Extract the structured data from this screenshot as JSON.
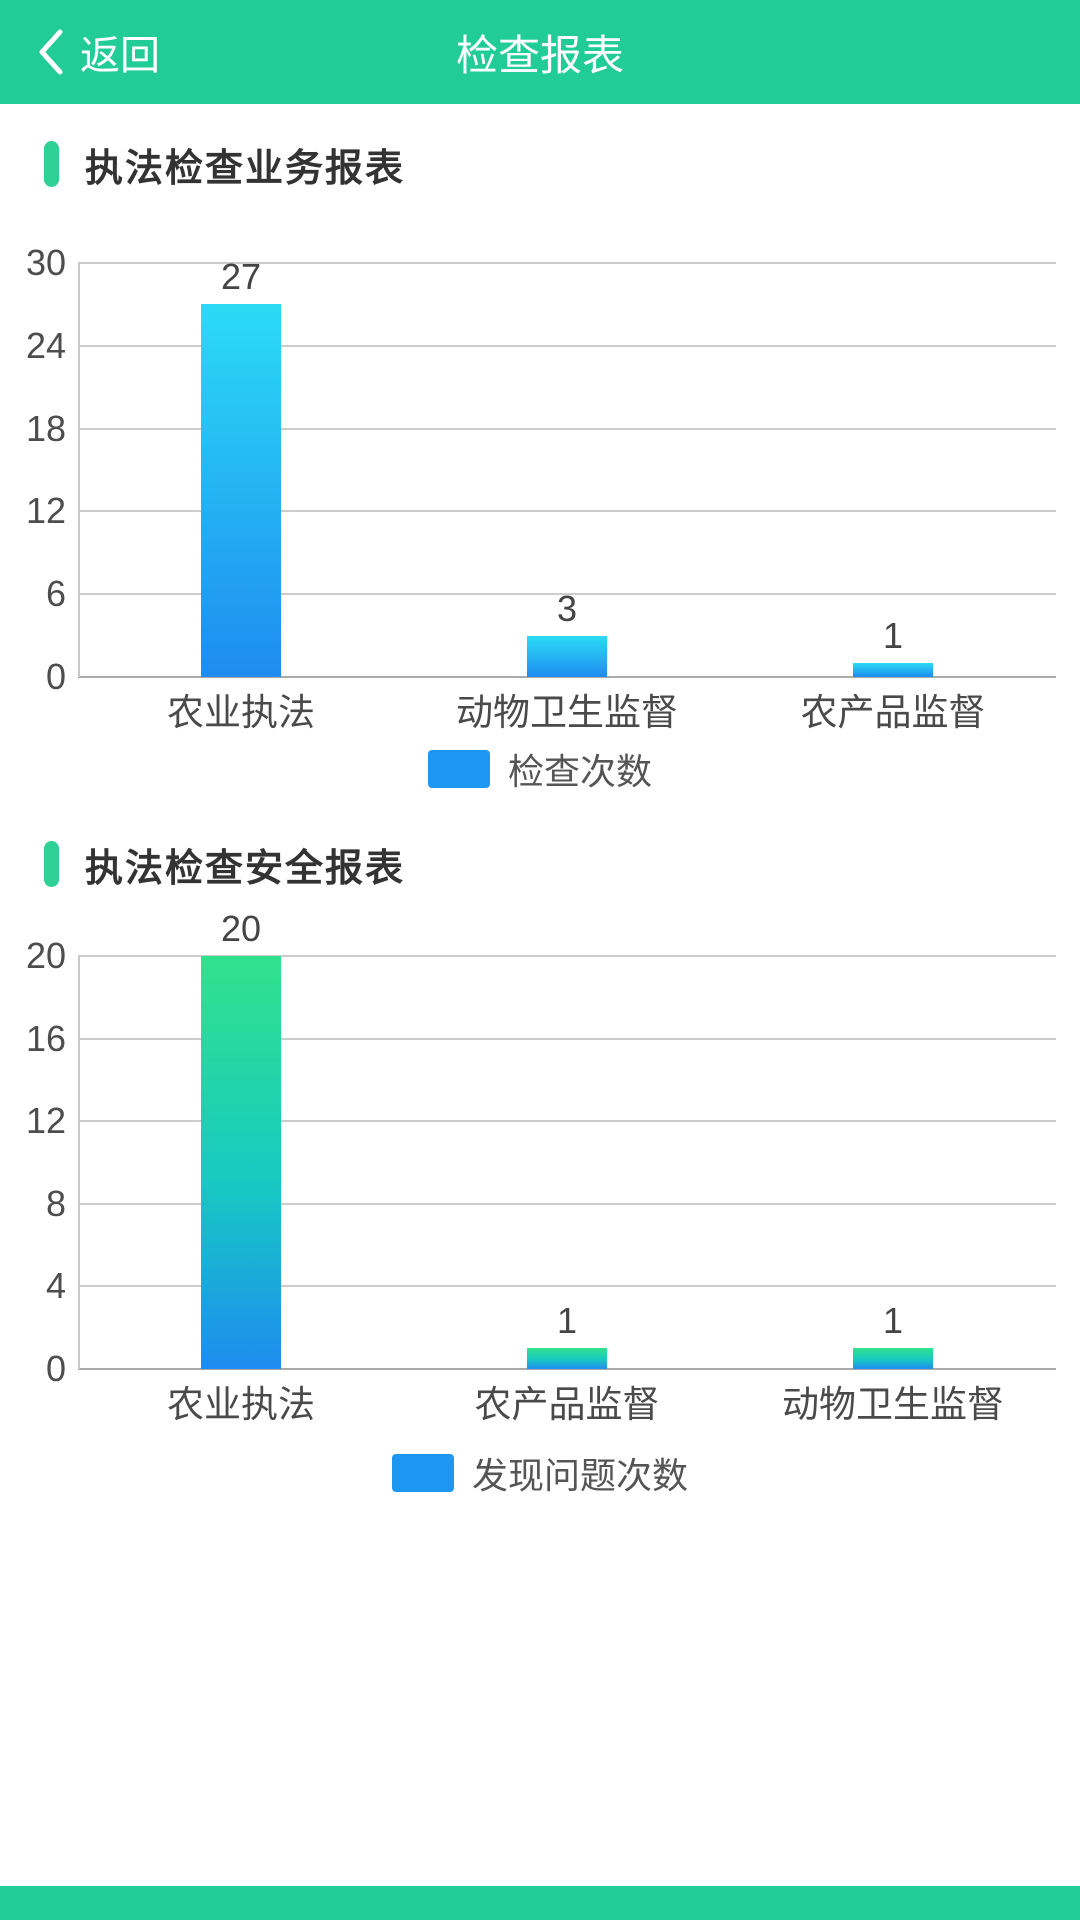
{
  "header": {
    "back_label": "返回",
    "title": "检查报表"
  },
  "colors": {
    "header_teal": "#22cc97",
    "section_marker_green": "#2fd095",
    "legend_swatch_blue": "#1e97f3",
    "bar_gradient_chart1_top": "#2bdbf5",
    "bar_gradient_chart1_bottom": "#1e8cf0",
    "bar_gradient_chart2_top": "#31e28c",
    "bar_gradient_chart2_bottom": "#1e8cf0",
    "gridline_gray": "#cccccc",
    "bottom_bar_teal": "#22cc97"
  },
  "chart_data": [
    {
      "type": "bar",
      "title": "执法检查业务报表",
      "categories": [
        "农业执法",
        "动物卫生监督",
        "农产品监督"
      ],
      "values": [
        27,
        3,
        1
      ],
      "value_labels": [
        "27",
        "3",
        "1"
      ],
      "ylim": [
        0,
        30
      ],
      "yticks": [
        0,
        6,
        12,
        18,
        24,
        30
      ],
      "grid": true,
      "legend_label": "检查次数",
      "legend_position": "bottom",
      "bar_style": "grad-cyan"
    },
    {
      "type": "bar",
      "title": "执法检查安全报表",
      "categories": [
        "农业执法",
        "农产品监督",
        "动物卫生监督"
      ],
      "values": [
        20,
        1,
        1
      ],
      "value_labels": [
        "20",
        "1",
        "1"
      ],
      "ylim": [
        0,
        20
      ],
      "yticks": [
        0,
        4,
        8,
        12,
        16,
        20
      ],
      "grid": true,
      "legend_label": "发现问题次数",
      "legend_position": "bottom",
      "bar_style": "grad-green"
    }
  ]
}
